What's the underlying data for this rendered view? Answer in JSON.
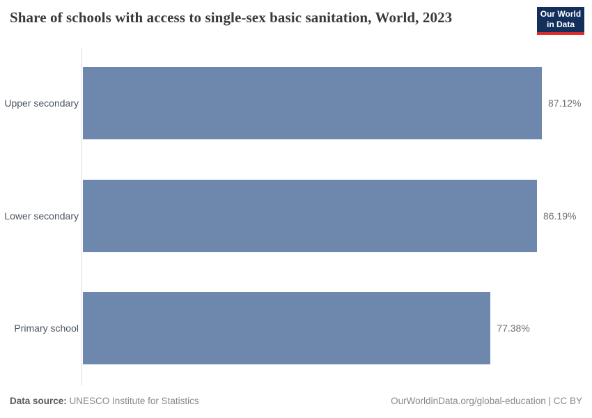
{
  "header": {
    "title": "Share of schools with access to single-sex basic sanitation, World, 2023",
    "logo": {
      "line1": "Our World",
      "line2": "in Data",
      "bg_color": "#12305b",
      "accent_color": "#dd2a2a"
    }
  },
  "chart_data": {
    "type": "bar",
    "orientation": "horizontal",
    "title": "Share of schools with access to single-sex basic sanitation, World, 2023",
    "categories": [
      "Upper secondary",
      "Lower secondary",
      "Primary school"
    ],
    "values": [
      87.12,
      86.19,
      77.38
    ],
    "value_labels": [
      "87.12%",
      "86.19%",
      "77.38%"
    ],
    "unit": "%",
    "xlabel": "",
    "ylabel": "",
    "xlim": [
      0,
      87.12
    ],
    "grid": false,
    "legend": false,
    "bar_color": "#6e87ac",
    "axis_line_color": "#dcdcdc"
  },
  "footer": {
    "data_source_label": "Data source:",
    "data_source_value": "UNESCO Institute for Statistics",
    "credit": "OurWorldinData.org/global-education | CC BY"
  }
}
